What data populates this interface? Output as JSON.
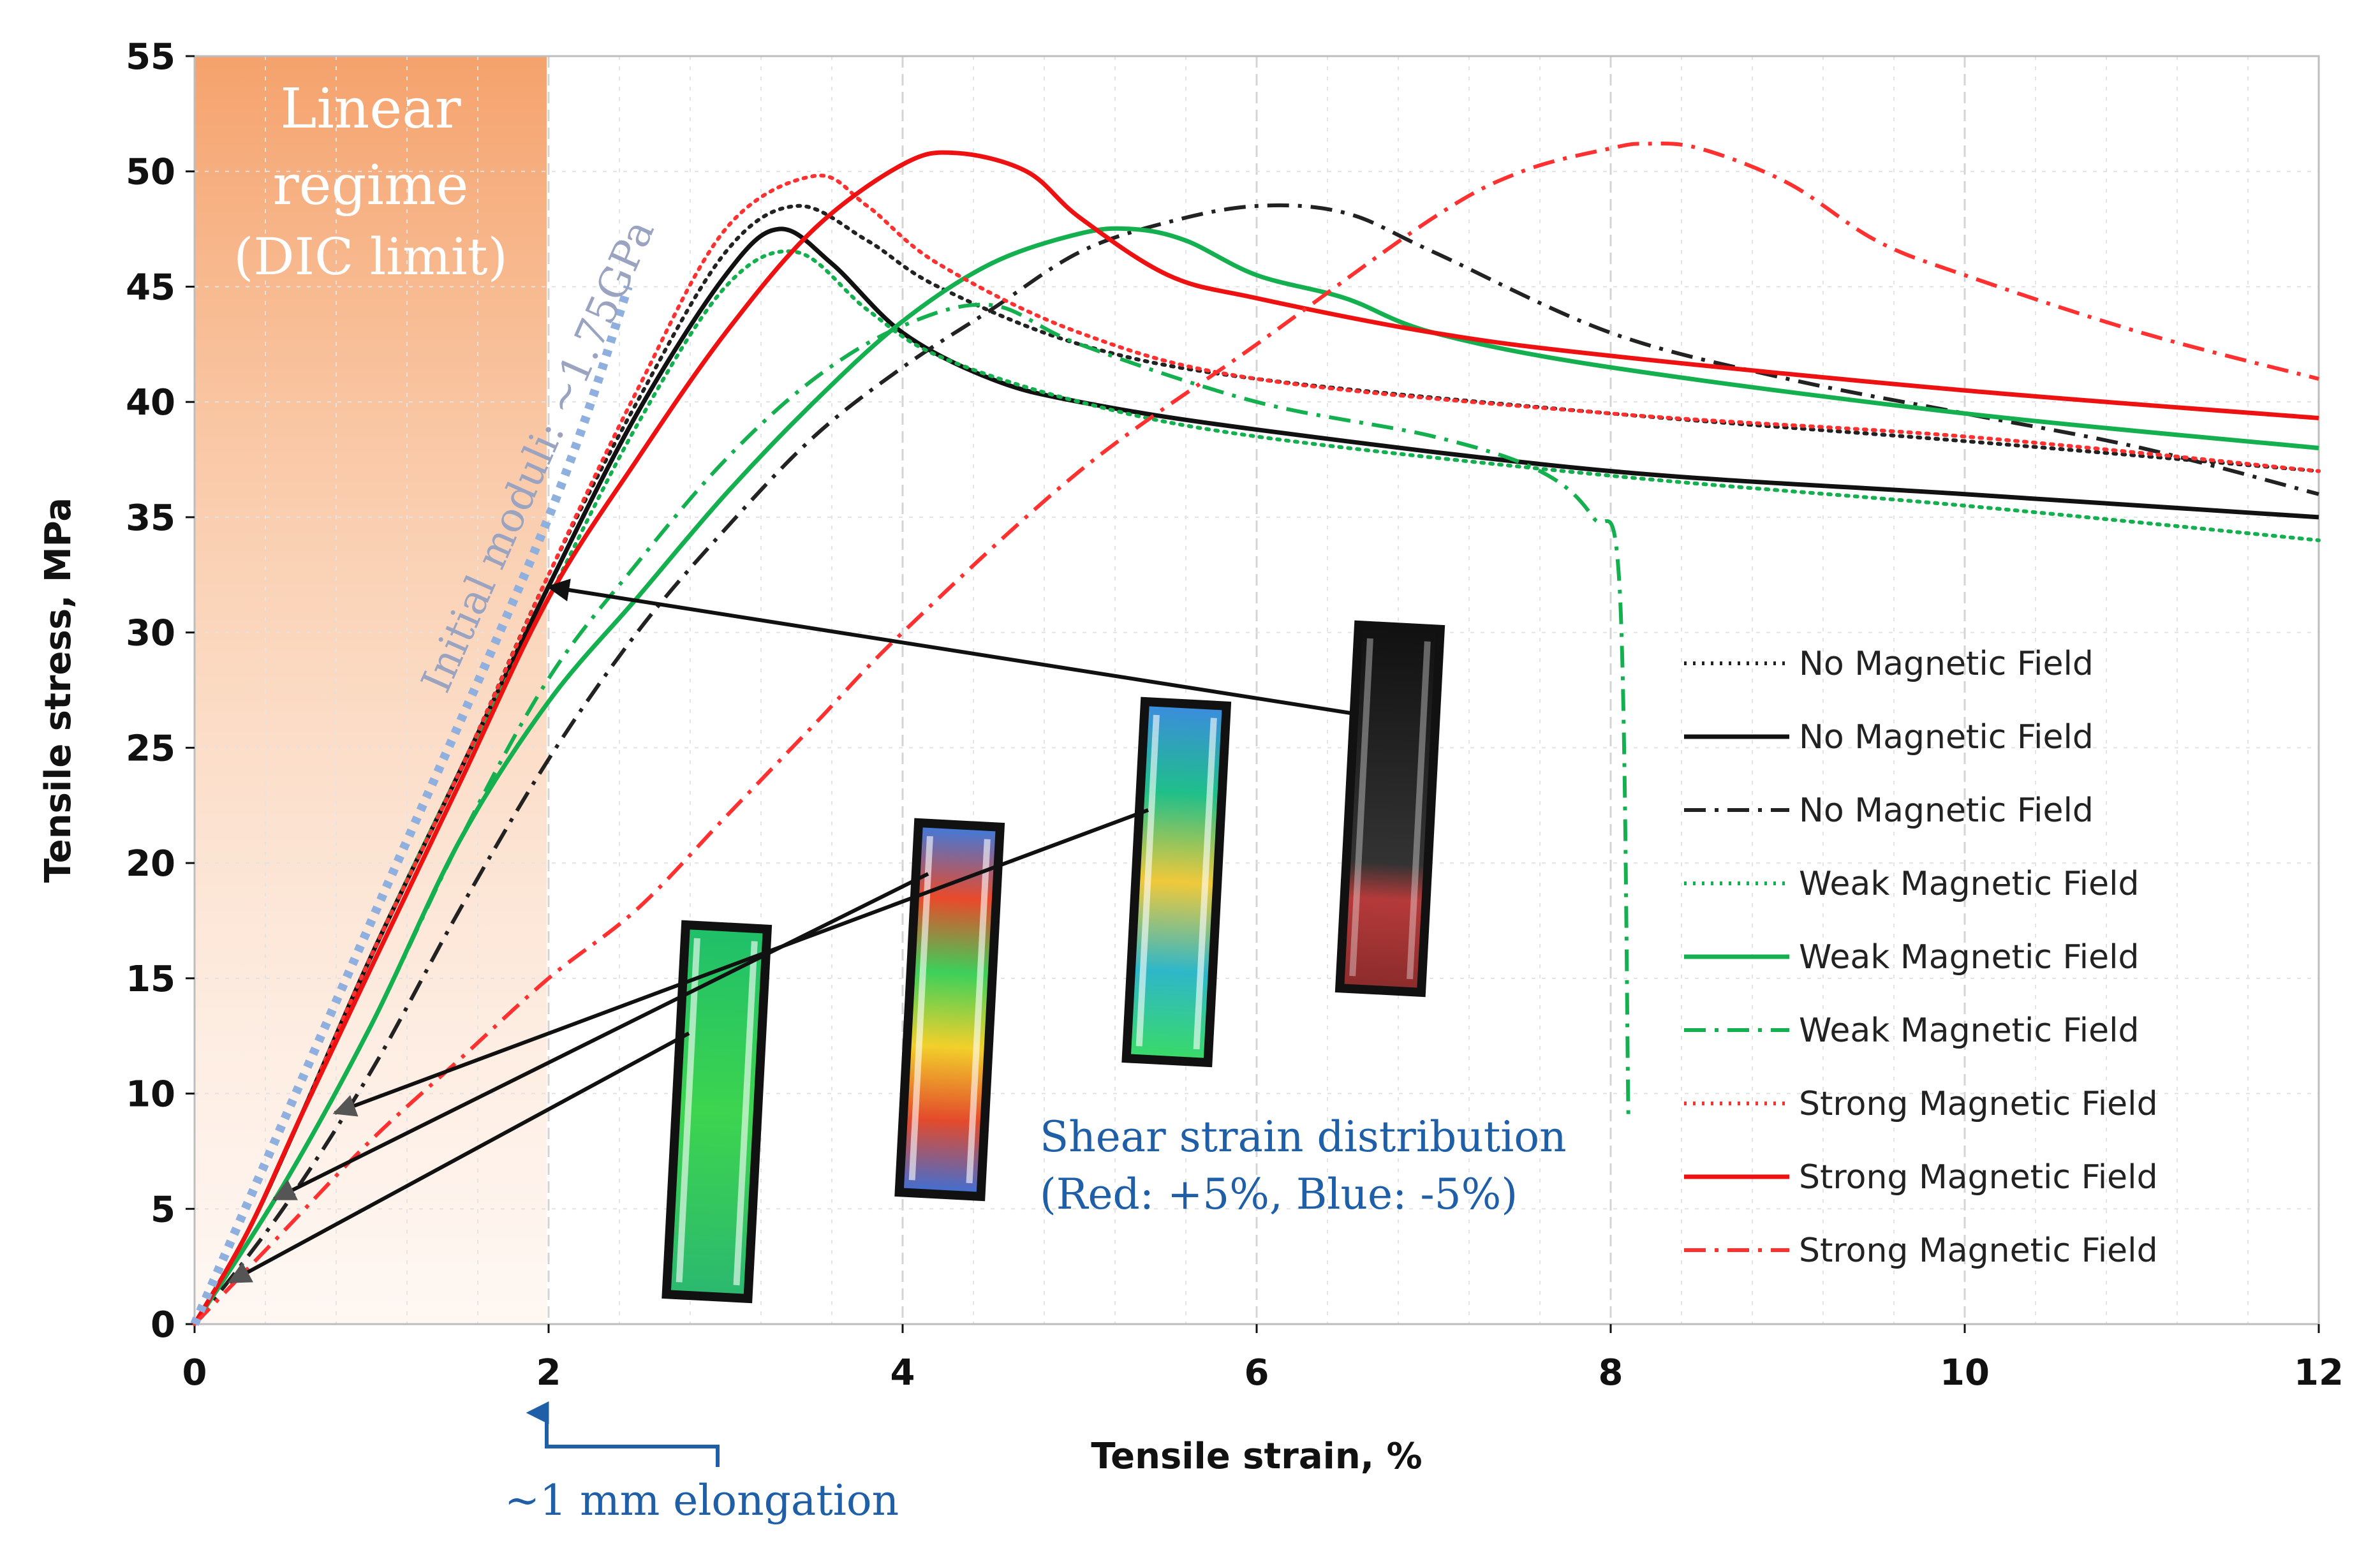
{
  "chart_data": {
    "type": "line",
    "title": "",
    "xlabel": "Tensile strain, %",
    "ylabel": "Tensile stress, MPa",
    "xlim": [
      0,
      12
    ],
    "ylim": [
      0,
      55
    ],
    "x_ticks": [
      0,
      2,
      4,
      6,
      8,
      10,
      12
    ],
    "y_ticks": [
      0,
      5,
      10,
      15,
      20,
      25,
      30,
      35,
      40,
      45,
      50,
      55
    ],
    "grid": true,
    "legend_position": "right",
    "series": [
      {
        "name": "No Magnetic Field",
        "color": "#222222",
        "dash": "dotted",
        "x": [
          0,
          0.3,
          0.6,
          1,
          1.5,
          2,
          2.5,
          3,
          3.4,
          3.8,
          4.2,
          5,
          6,
          8,
          10,
          12
        ],
        "y": [
          0,
          4,
          9,
          16,
          24,
          32.5,
          40,
          46.5,
          48.5,
          47,
          45,
          42.5,
          41,
          39.5,
          38.3,
          37
        ]
      },
      {
        "name": "No Magnetic Field",
        "color": "#111111",
        "dash": "solid",
        "x": [
          0,
          0.3,
          0.6,
          1,
          1.5,
          2,
          2.5,
          3,
          3.3,
          3.6,
          4,
          4.5,
          5,
          6,
          8,
          10,
          12
        ],
        "y": [
          0,
          4,
          9,
          16,
          24,
          32,
          39.5,
          45.5,
          47.5,
          46,
          43,
          41,
          40,
          38.8,
          37,
          36,
          35
        ]
      },
      {
        "name": "No Magnetic Field",
        "color": "#222222",
        "dash": "dashdot",
        "x": [
          0,
          0.5,
          1,
          1.5,
          2,
          2.5,
          3,
          3.5,
          4,
          4.5,
          5,
          5.5,
          6,
          6.5,
          7,
          8,
          9,
          10,
          11,
          12
        ],
        "y": [
          0,
          5,
          11,
          18,
          24.5,
          30,
          34.5,
          38.5,
          41.5,
          44,
          46.5,
          47.8,
          48.5,
          48.2,
          46.5,
          43,
          41,
          39.5,
          38,
          36
        ]
      },
      {
        "name": "Weak Magnetic Field",
        "color": "#14b050",
        "dash": "dotted",
        "x": [
          0,
          0.3,
          0.6,
          1,
          1.5,
          2,
          2.5,
          3,
          3.4,
          3.8,
          4.2,
          5,
          6,
          8,
          10,
          12
        ],
        "y": [
          0,
          4,
          9,
          16,
          24,
          31.5,
          39,
          45,
          46.5,
          44,
          42,
          40,
          38.5,
          36.8,
          35.5,
          34
        ]
      },
      {
        "name": "Weak Magnetic Field",
        "color": "#14b050",
        "dash": "solid",
        "x": [
          0,
          0.5,
          1,
          1.5,
          2,
          2.5,
          3,
          3.5,
          4,
          4.5,
          5,
          5.3,
          5.6,
          6,
          6.5,
          7,
          8,
          10,
          12
        ],
        "y": [
          0,
          6,
          13,
          21,
          27,
          31.5,
          36,
          40,
          43.5,
          46,
          47.3,
          47.5,
          47,
          45.5,
          44.5,
          43,
          41.5,
          39.5,
          38
        ]
      },
      {
        "name": "Weak Magnetic Field",
        "color": "#14b050",
        "dash": "dashdot",
        "x": [
          0,
          0.5,
          1,
          1.5,
          2,
          2.5,
          3,
          3.5,
          4,
          4.5,
          5,
          6,
          7,
          7.6,
          7.9,
          8.05,
          8.1
        ],
        "y": [
          0,
          6,
          13,
          21,
          28,
          33,
          37.5,
          41,
          43.3,
          44.2,
          42.5,
          40,
          38.5,
          37,
          35,
          32,
          9
        ]
      },
      {
        "name": "Strong Magnetic Field",
        "color": "#ff3030",
        "dash": "dotted",
        "x": [
          0,
          0.3,
          0.6,
          1,
          1.5,
          2,
          2.5,
          3,
          3.5,
          3.8,
          4.2,
          5,
          6,
          8,
          10,
          12
        ],
        "y": [
          0,
          4,
          9,
          16,
          24,
          32.5,
          40.5,
          47.5,
          49.8,
          48.5,
          46,
          43,
          41,
          39.5,
          38.5,
          37
        ]
      },
      {
        "name": "Strong Magnetic Field",
        "color": "#ee1111",
        "dash": "solid",
        "x": [
          0,
          0.3,
          0.6,
          1,
          1.5,
          2,
          2.5,
          3,
          3.5,
          4,
          4.3,
          4.7,
          5,
          5.5,
          6,
          7,
          8,
          10,
          12
        ],
        "y": [
          0,
          4,
          9,
          15.5,
          23.5,
          31.5,
          37.5,
          43,
          47.5,
          50.3,
          50.8,
          50,
          48,
          45.5,
          44.5,
          43,
          42,
          40.5,
          39.3
        ]
      },
      {
        "name": "Strong Magnetic Field",
        "color": "#ff3030",
        "dash": "dashdot",
        "x": [
          0,
          0.5,
          1,
          1.5,
          2,
          2.5,
          3,
          3.5,
          4,
          5,
          6,
          7,
          7.5,
          8,
          8.2,
          8.5,
          9,
          9.5,
          10,
          11,
          12
        ],
        "y": [
          0,
          4,
          8,
          11.5,
          15,
          18,
          22,
          26,
          30,
          37,
          42.5,
          48,
          50,
          51,
          51.2,
          51,
          49.5,
          47,
          45.5,
          43,
          41
        ]
      },
      {
        "name": "Initial moduli: ~1.75GPa",
        "color": "#8fb0de",
        "dash": "thickdot",
        "x": [
          0,
          1,
          2,
          2.45
        ],
        "y": [
          0,
          17.5,
          35,
          45
        ]
      }
    ],
    "annotations": {
      "linear_regime_title": "Linear",
      "linear_regime_line2": "regime",
      "linear_regime_line3": "(DIC limit)",
      "linear_regime_strain_extent": [
        0,
        2
      ],
      "moduli_label": "Initial moduli: ~1.75GPa",
      "shear_label_line1": "Shear strain distribution",
      "shear_label_line2": "(Red: +5%, Blue: -5%)",
      "elongation_label": "~1 mm elongation",
      "elongation_marker_strain": 2
    }
  }
}
